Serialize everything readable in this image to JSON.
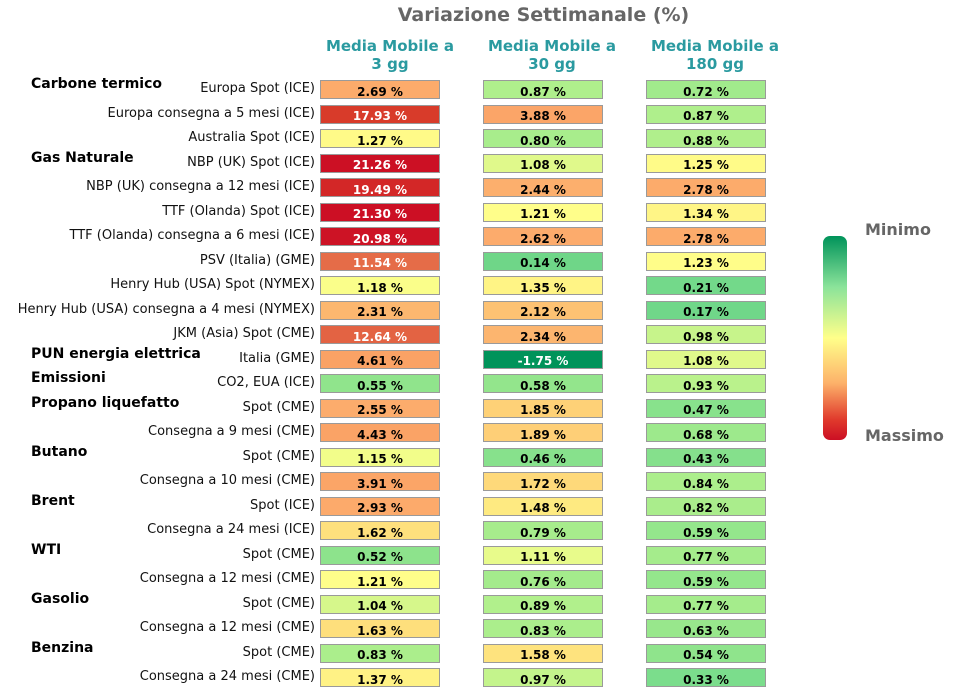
{
  "chart_data": {
    "type": "heatmap",
    "title": "Variazione Settimanale (%)",
    "columns": [
      {
        "line1": "Media Mobile a",
        "line2": "3 gg"
      },
      {
        "line1": "Media Mobile a",
        "line2": "30 gg"
      },
      {
        "line1": "Media Mobile a",
        "line2": "180 gg"
      }
    ],
    "groups": [
      {
        "name": "Carbone termico",
        "rows": [
          0
        ]
      },
      {
        "name": "Gas Naturale",
        "rows": [
          3
        ]
      },
      {
        "name": "PUN energia elettrica",
        "rows": [
          11
        ]
      },
      {
        "name": "Emissioni",
        "rows": [
          12
        ]
      },
      {
        "name": "Propano liquefatto",
        "rows": [
          13
        ]
      },
      {
        "name": "Butano",
        "rows": [
          15
        ]
      },
      {
        "name": "Brent",
        "rows": [
          17
        ]
      },
      {
        "name": "WTI",
        "rows": [
          19
        ]
      },
      {
        "name": "Gasolio",
        "rows": [
          21
        ]
      },
      {
        "name": "Benzina",
        "rows": [
          23
        ]
      }
    ],
    "rows": [
      {
        "label": "Europa Spot (ICE)",
        "values": [
          2.69,
          0.87,
          0.72
        ],
        "texts": [
          "2.69 %",
          "0.87 %",
          "0.72 %"
        ]
      },
      {
        "label": "Europa consegna a 5 mesi (ICE)",
        "values": [
          17.93,
          3.88,
          0.87
        ],
        "texts": [
          "17.93 %",
          "3.88 %",
          "0.87 %"
        ]
      },
      {
        "label": "Australia Spot (ICE)",
        "values": [
          1.27,
          0.8,
          0.88
        ],
        "texts": [
          "1.27 %",
          "0.80 %",
          "0.88 %"
        ]
      },
      {
        "label": "NBP (UK) Spot (ICE)",
        "values": [
          21.26,
          1.08,
          1.25
        ],
        "texts": [
          "21.26 %",
          "1.08 %",
          "1.25 %"
        ]
      },
      {
        "label": "NBP (UK) consegna a 12 mesi (ICE)",
        "values": [
          19.49,
          2.44,
          2.78
        ],
        "texts": [
          "19.49 %",
          "2.44 %",
          "2.78 %"
        ]
      },
      {
        "label": "TTF (Olanda) Spot (ICE)",
        "values": [
          21.3,
          1.21,
          1.34
        ],
        "texts": [
          "21.30 %",
          "1.21 %",
          "1.34 %"
        ]
      },
      {
        "label": "TTF (Olanda) consegna a 6 mesi (ICE)",
        "values": [
          20.98,
          2.62,
          2.78
        ],
        "texts": [
          "20.98 %",
          "2.62 %",
          "2.78 %"
        ]
      },
      {
        "label": "PSV (Italia) (GME)",
        "values": [
          11.54,
          0.14,
          1.23
        ],
        "texts": [
          "11.54 %",
          "0.14 %",
          "1.23 %"
        ]
      },
      {
        "label": "Henry Hub (USA) Spot (NYMEX)",
        "values": [
          1.18,
          1.35,
          0.21
        ],
        "texts": [
          "1.18 %",
          "1.35 %",
          "0.21 %"
        ]
      },
      {
        "label": "Henry Hub (USA) consegna a 4 mesi (NYMEX)",
        "values": [
          2.31,
          2.12,
          0.17
        ],
        "texts": [
          "2.31 %",
          "2.12 %",
          "0.17 %"
        ]
      },
      {
        "label": "JKM (Asia) Spot (CME)",
        "values": [
          12.64,
          2.34,
          0.98
        ],
        "texts": [
          "12.64 %",
          "2.34 %",
          "0.98 %"
        ]
      },
      {
        "label": "Italia (GME)",
        "values": [
          4.61,
          -1.75,
          1.08
        ],
        "texts": [
          "4.61 %",
          "-1.75 %",
          "1.08 %"
        ]
      },
      {
        "label": "CO2, EUA (ICE)",
        "values": [
          0.55,
          0.58,
          0.93
        ],
        "texts": [
          "0.55 %",
          "0.58 %",
          "0.93 %"
        ]
      },
      {
        "label": "Spot (CME)",
        "values": [
          2.55,
          1.85,
          0.47
        ],
        "texts": [
          "2.55 %",
          "1.85 %",
          "0.47 %"
        ]
      },
      {
        "label": "Consegna a 9 mesi (CME)",
        "values": [
          4.43,
          1.89,
          0.68
        ],
        "texts": [
          "4.43 %",
          "1.89 %",
          "0.68 %"
        ]
      },
      {
        "label": "Spot (CME)",
        "values": [
          1.15,
          0.46,
          0.43
        ],
        "texts": [
          "1.15 %",
          "0.46 %",
          "0.43 %"
        ]
      },
      {
        "label": "Consegna a 10 mesi (CME)",
        "values": [
          3.91,
          1.72,
          0.84
        ],
        "texts": [
          "3.91 %",
          "1.72 %",
          "0.84 %"
        ]
      },
      {
        "label": "Spot (ICE)",
        "values": [
          2.93,
          1.48,
          0.82
        ],
        "texts": [
          "2.93 %",
          "1.48 %",
          "0.82 %"
        ]
      },
      {
        "label": "Consegna a 24 mesi (ICE)",
        "values": [
          1.62,
          0.79,
          0.59
        ],
        "texts": [
          "1.62 %",
          "0.79 %",
          "0.59 %"
        ]
      },
      {
        "label": "Spot (CME)",
        "values": [
          0.52,
          1.11,
          0.77
        ],
        "texts": [
          "0.52 %",
          "1.11 %",
          "0.77 %"
        ]
      },
      {
        "label": "Consegna a 12 mesi (CME)",
        "values": [
          1.21,
          0.76,
          0.59
        ],
        "texts": [
          "1.21 %",
          "0.76 %",
          "0.59 %"
        ]
      },
      {
        "label": "Spot (CME)",
        "values": [
          1.04,
          0.89,
          0.77
        ],
        "texts": [
          "1.04 %",
          "0.89 %",
          "0.77 %"
        ]
      },
      {
        "label": "Consegna a 12 mesi (CME)",
        "values": [
          1.63,
          0.83,
          0.63
        ],
        "texts": [
          "1.63 %",
          "0.83 %",
          "0.63 %"
        ]
      },
      {
        "label": "Spot (CME)",
        "values": [
          0.83,
          1.58,
          0.54
        ],
        "texts": [
          "0.83 %",
          "1.58 %",
          "0.54 %"
        ]
      },
      {
        "label": "Consegna a 24 mesi (CME)",
        "values": [
          1.37,
          0.97,
          0.33
        ],
        "texts": [
          "1.37 %",
          "0.97 %",
          "0.33 %"
        ]
      }
    ],
    "legend": {
      "top_label": "Minimo",
      "bottom_label": "Massimo"
    },
    "colors": {
      "min": "#00935a",
      "mid": "#ffff8a",
      "max": "#cc0f24",
      "title": "#666666",
      "column_header": "#2a9aa0"
    }
  }
}
